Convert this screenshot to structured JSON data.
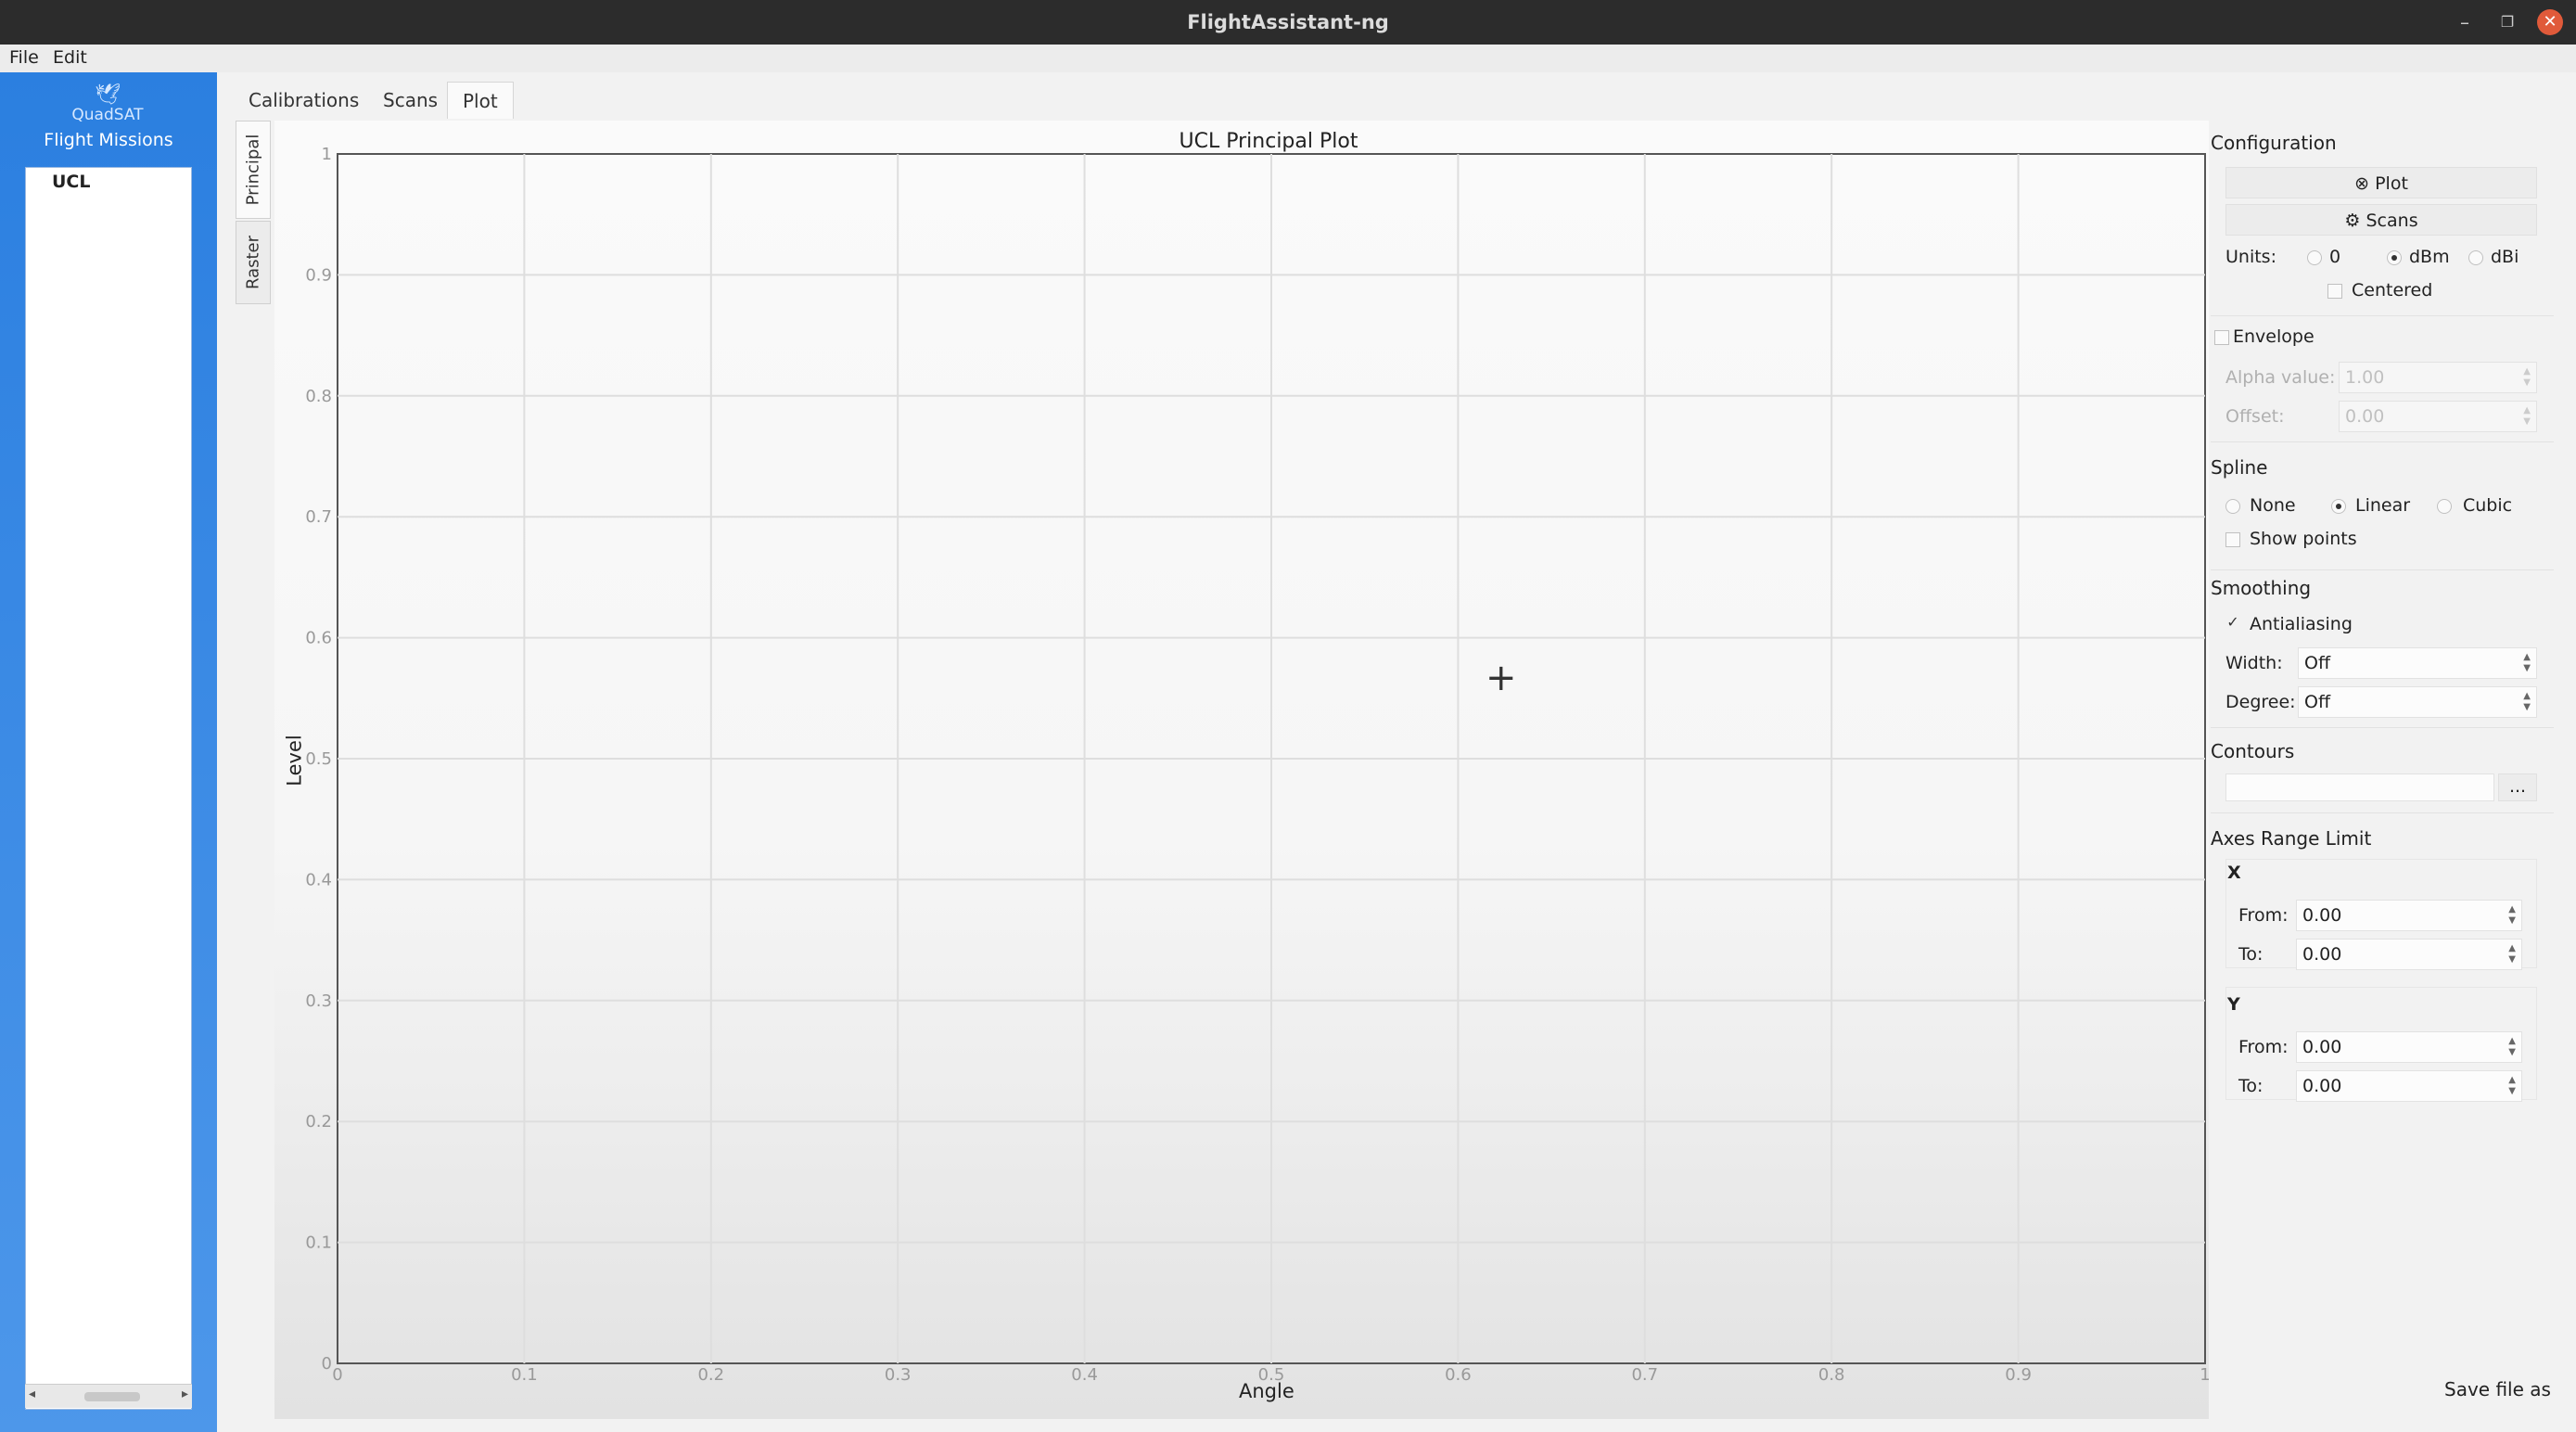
{
  "window": {
    "title": "FlightAssistant-ng",
    "minimize_glyph": "–",
    "maximize_glyph": "❐",
    "close_glyph": "✕"
  },
  "menu": [
    "File",
    "Edit"
  ],
  "sidebar": {
    "logo_text": "QuadSAT",
    "logo_icon": "bird-logo-icon",
    "title": "Flight Missions",
    "missions": [
      "UCL"
    ]
  },
  "tabs": [
    "Calibrations",
    "Scans",
    "Plot"
  ],
  "active_tab": "Plot",
  "vertical_tabs": [
    "Principal",
    "Raster"
  ],
  "chart_data": {
    "type": "line",
    "title": "UCL Principal Plot",
    "xlabel": "Angle",
    "ylabel": "Level",
    "xlim": [
      0,
      1
    ],
    "ylim": [
      0,
      1
    ],
    "xticks": [
      "0",
      "0.1",
      "0.2",
      "0.3",
      "0.4",
      "0.5",
      "0.6",
      "0.7",
      "0.8",
      "0.9",
      "1"
    ],
    "yticks": [
      "0",
      "0.1",
      "0.2",
      "0.3",
      "0.4",
      "0.5",
      "0.6",
      "0.7",
      "0.8",
      "0.9",
      "1"
    ],
    "grid": true,
    "series": []
  },
  "config": {
    "title": "Configuration",
    "plot_button": "Plot",
    "scans_button": "Scans",
    "units_label": "Units:",
    "units_options": [
      "0",
      "dBm",
      "dBi"
    ],
    "units_selected": "dBm",
    "centered_label": "Centered",
    "envelope_label": "Envelope",
    "alpha_label": "Alpha value:",
    "alpha_value": "1.00",
    "offset_label": "Offset:",
    "offset_value": "0.00",
    "spline_title": "Spline",
    "spline_options": [
      "None",
      "Linear",
      "Cubic"
    ],
    "spline_selected": "Linear",
    "show_points_label": "Show points",
    "smoothing_title": "Smoothing",
    "antialiasing_label": "Antialiasing",
    "antialiasing_checked": true,
    "width_label": "Width:",
    "width_value": "Off",
    "degree_label": "Degree:",
    "degree_value": "Off",
    "contours_title": "Contours",
    "contours_button": "...",
    "axes_title": "Axes Range Limit",
    "x_label": "X",
    "y_label": "Y",
    "from_label": "From:",
    "to_label": "To:",
    "x_from": "0.00",
    "x_to": "0.00",
    "y_from": "0.00",
    "y_to": "0.00"
  },
  "save_label": "Save file as"
}
